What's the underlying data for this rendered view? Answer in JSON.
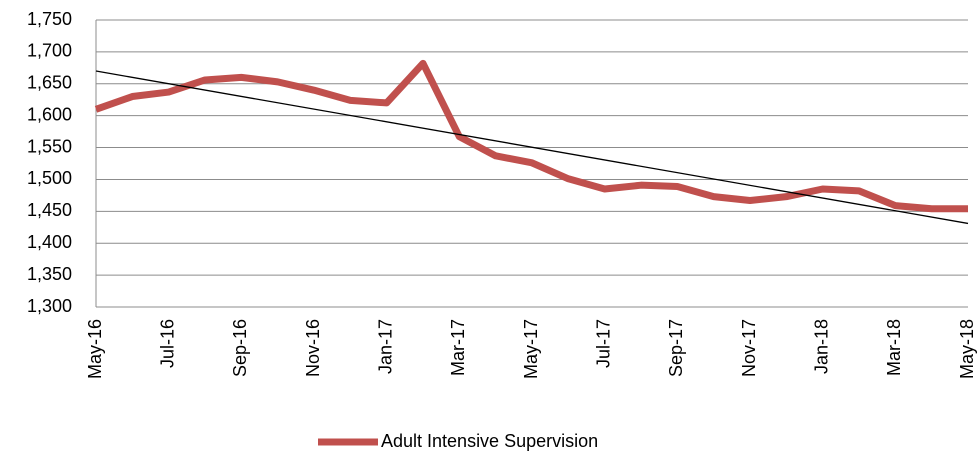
{
  "chart_data": {
    "type": "line",
    "categories": [
      "May-16",
      null,
      "Jul-16",
      null,
      "Sep-16",
      null,
      "Nov-16",
      null,
      "Jan-17",
      null,
      "Mar-17",
      null,
      "May-17",
      null,
      "Jul-17",
      null,
      "Sep-17",
      null,
      "Nov-17",
      null,
      "Jan-18",
      null,
      "Mar-18",
      null,
      "May-18"
    ],
    "series": [
      {
        "name": "Adult Intensive Supervision",
        "color": "#c0504d",
        "values": [
          1610,
          1630,
          1637,
          1656,
          1660,
          1653,
          1640,
          1624,
          1620,
          1682,
          1567,
          1537,
          1526,
          1501,
          1485,
          1491,
          1489,
          1473,
          1467,
          1473,
          1485,
          1482,
          1459,
          1454,
          1454
        ]
      }
    ],
    "trendline": {
      "color": "#000000",
      "values": [
        1670,
        1431
      ]
    },
    "ylim": [
      1300,
      1750
    ],
    "yticks": [
      {
        "value": 1300,
        "label": "1,300"
      },
      {
        "value": 1350,
        "label": "1,350"
      },
      {
        "value": 1400,
        "label": "1,400"
      },
      {
        "value": 1450,
        "label": "1,450"
      },
      {
        "value": 1500,
        "label": "1,500"
      },
      {
        "value": 1550,
        "label": "1,550"
      },
      {
        "value": 1600,
        "label": "1,600"
      },
      {
        "value": 1650,
        "label": "1,650"
      },
      {
        "value": 1700,
        "label": "1,700"
      },
      {
        "value": 1750,
        "label": "1,750"
      }
    ],
    "grid": true,
    "legend": "bottom"
  }
}
